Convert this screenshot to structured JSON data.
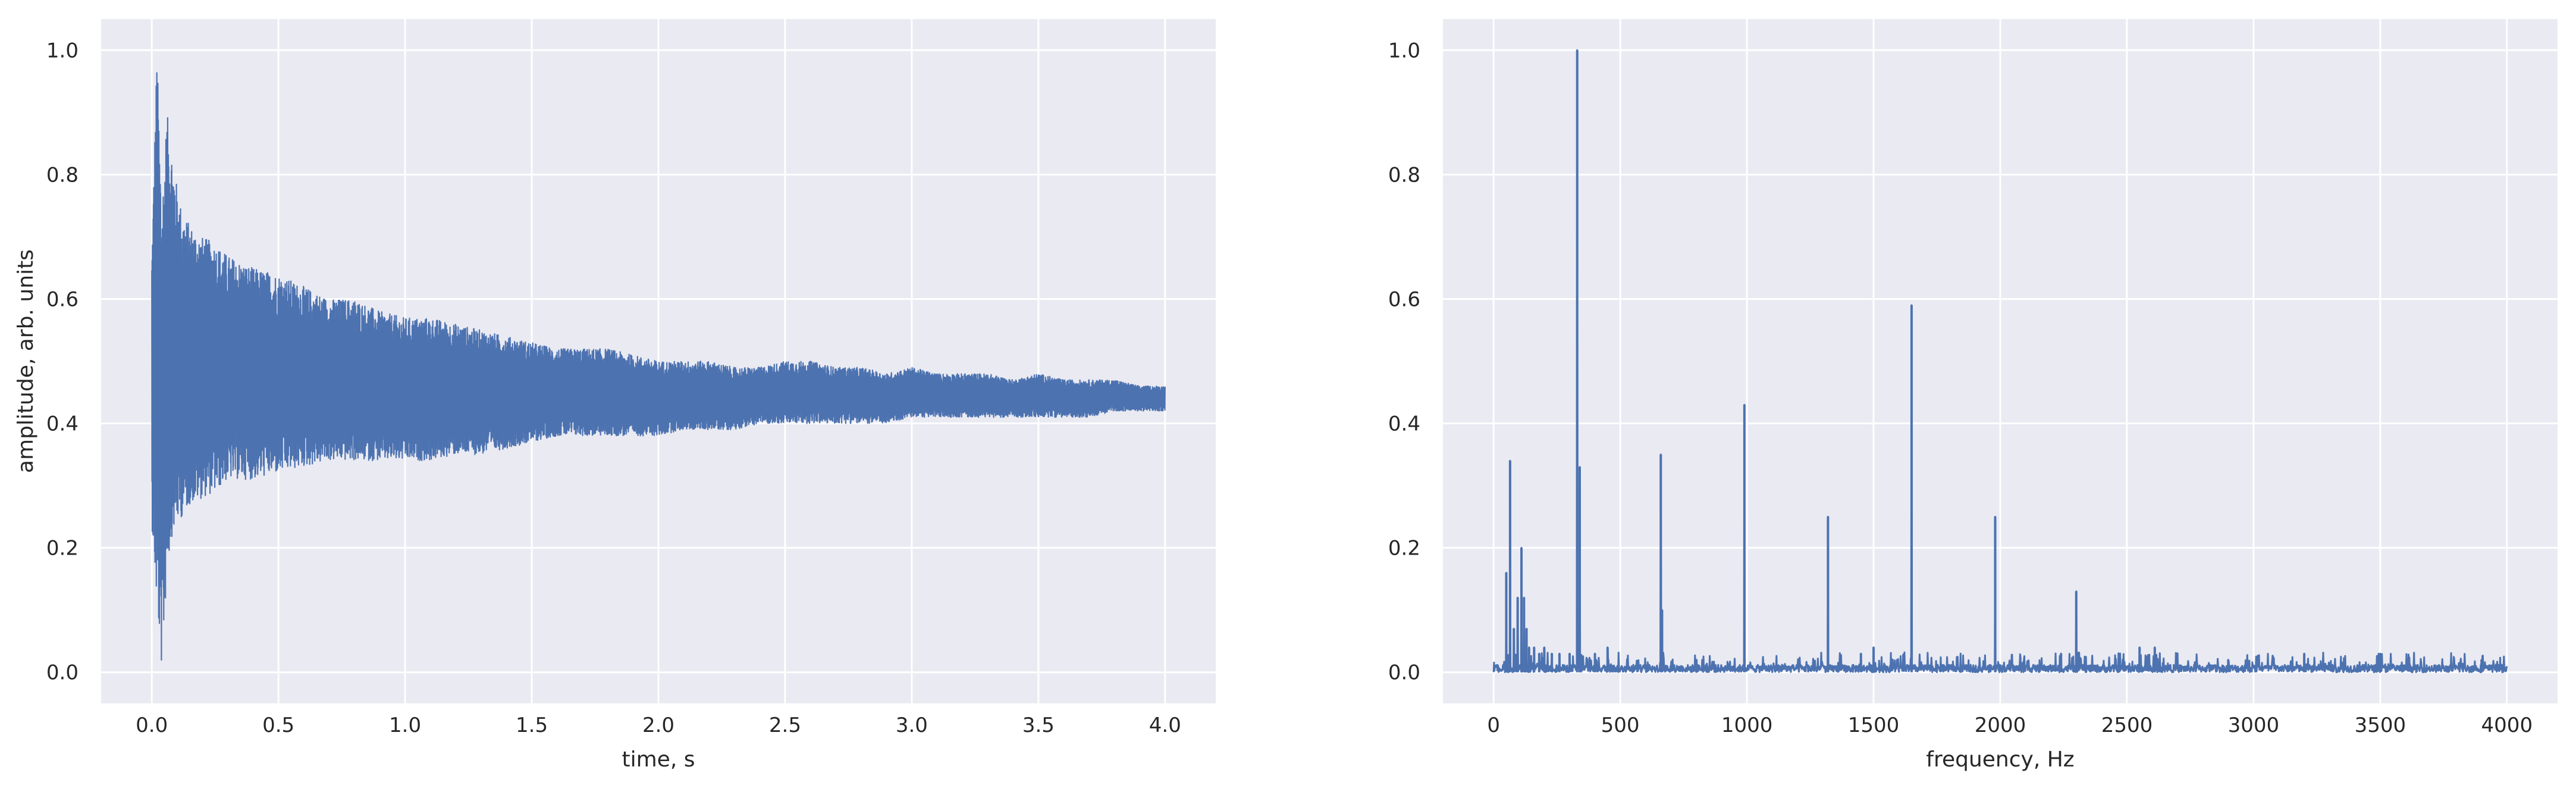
{
  "chart_data": [
    {
      "type": "line",
      "title": "",
      "xlabel": "time, s",
      "ylabel": "amplitude, arb. units",
      "xlim": [
        -0.2,
        4.2
      ],
      "ylim": [
        -0.05,
        1.05
      ],
      "xticks": [
        0.0,
        0.5,
        1.0,
        1.5,
        2.0,
        2.5,
        3.0,
        3.5,
        4.0
      ],
      "xtick_labels": [
        "0.0",
        "0.5",
        "1.0",
        "1.5",
        "2.0",
        "2.5",
        "3.0",
        "3.5",
        "4.0"
      ],
      "yticks": [
        0.0,
        0.2,
        0.4,
        0.6,
        0.8,
        1.0
      ],
      "ytick_labels": [
        "0.0",
        "0.2",
        "0.4",
        "0.6",
        "0.8",
        "1.0"
      ],
      "grid": true,
      "color": "#4c72b0",
      "series": [
        {
          "x": [
            0.0,
            0.02,
            0.04,
            0.06,
            0.08,
            0.1,
            0.12,
            0.15,
            0.2,
            0.25,
            0.3,
            0.4,
            0.5,
            0.6,
            0.7,
            0.8,
            0.9,
            1.0,
            1.1,
            1.2,
            1.3,
            1.4,
            1.5,
            1.6,
            1.7,
            1.8,
            1.9,
            2.0,
            2.1,
            2.2,
            2.3,
            2.4,
            2.5,
            2.6,
            2.7,
            2.8,
            2.9,
            3.0,
            3.1,
            3.2,
            3.3,
            3.4,
            3.5,
            3.6,
            3.7,
            3.8,
            3.9,
            4.0
          ],
          "upper": [
            0.68,
            1.0,
            0.76,
            0.9,
            0.84,
            0.78,
            0.74,
            0.72,
            0.7,
            0.69,
            0.67,
            0.65,
            0.64,
            0.62,
            0.6,
            0.6,
            0.58,
            0.57,
            0.57,
            0.56,
            0.55,
            0.54,
            0.53,
            0.52,
            0.52,
            0.52,
            0.51,
            0.5,
            0.5,
            0.5,
            0.49,
            0.49,
            0.5,
            0.5,
            0.49,
            0.49,
            0.48,
            0.49,
            0.48,
            0.48,
            0.48,
            0.47,
            0.48,
            0.47,
            0.47,
            0.47,
            0.46,
            0.46
          ],
          "lower": [
            0.24,
            0.1,
            0.0,
            0.16,
            0.22,
            0.24,
            0.25,
            0.27,
            0.28,
            0.29,
            0.31,
            0.31,
            0.32,
            0.33,
            0.34,
            0.34,
            0.34,
            0.34,
            0.34,
            0.35,
            0.35,
            0.36,
            0.37,
            0.38,
            0.38,
            0.38,
            0.38,
            0.38,
            0.39,
            0.39,
            0.39,
            0.4,
            0.4,
            0.4,
            0.4,
            0.4,
            0.4,
            0.41,
            0.41,
            0.41,
            0.41,
            0.41,
            0.41,
            0.41,
            0.41,
            0.42,
            0.42,
            0.42
          ]
        }
      ]
    },
    {
      "type": "line",
      "title": "",
      "xlabel": "frequency, Hz",
      "ylabel": "",
      "xlim": [
        -200,
        4200
      ],
      "ylim": [
        -0.05,
        1.05
      ],
      "xticks": [
        0,
        500,
        1000,
        1500,
        2000,
        2500,
        3000,
        3500,
        4000
      ],
      "xtick_labels": [
        "0",
        "500",
        "1000",
        "1500",
        "2000",
        "2500",
        "3000",
        "3500",
        "4000"
      ],
      "yticks": [
        0.0,
        0.2,
        0.4,
        0.6,
        0.8,
        1.0
      ],
      "ytick_labels": [
        "0.0",
        "0.2",
        "0.4",
        "0.6",
        "0.8",
        "1.0"
      ],
      "grid": true,
      "color": "#4c72b0",
      "series": [
        {
          "peaks_x": [
            50,
            65,
            80,
            95,
            110,
            120,
            130,
            140,
            160,
            180,
            200,
            230,
            260,
            300,
            330,
            340,
            400,
            450,
            660,
            665,
            990,
            1320,
            1450,
            1500,
            1650,
            1980,
            2240,
            2300,
            2550,
            2610,
            2900,
            3200,
            3500,
            3900
          ],
          "peaks_y": [
            0.16,
            0.34,
            0.07,
            0.12,
            0.2,
            0.12,
            0.07,
            0.04,
            0.04,
            0.03,
            0.04,
            0.03,
            0.03,
            0.03,
            1.0,
            0.33,
            0.03,
            0.04,
            0.35,
            0.1,
            0.43,
            0.25,
            0.03,
            0.04,
            0.59,
            0.25,
            0.03,
            0.13,
            0.04,
            0.04,
            0.02,
            0.03,
            0.03,
            0.02
          ],
          "noise_level": 0.02,
          "x_range": [
            0,
            4000
          ]
        }
      ]
    }
  ]
}
